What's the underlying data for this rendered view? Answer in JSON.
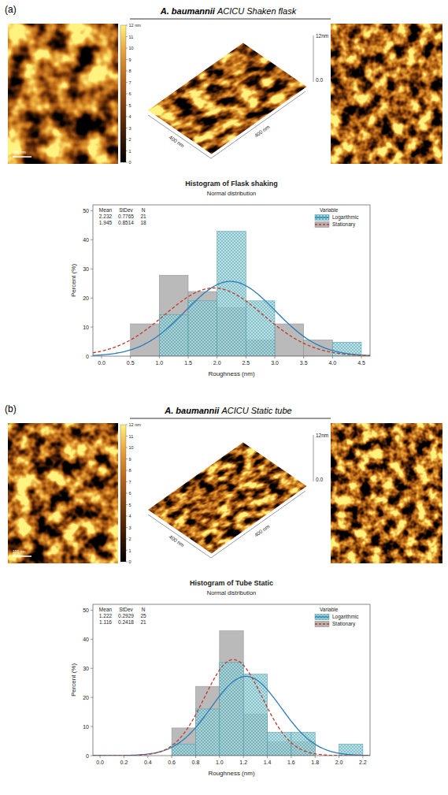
{
  "figure": {
    "panels": [
      {
        "label": "(a)",
        "title": "A. baumannii ACICU Shaken flask",
        "scale_bar": "100 nm",
        "colorbar": {
          "range": [
            0,
            12
          ],
          "ticks": [
            0,
            1,
            2,
            3,
            4,
            5,
            6,
            7,
            8,
            9,
            10,
            11
          ],
          "max_label": "12 nm"
        },
        "surface": {
          "x_label": "400 nm",
          "y_label": "400 nm",
          "z_top": "12nm",
          "z_bottom": "0.0"
        }
      },
      {
        "label": "(b)",
        "title": "A. baumannii ACICU Static tube",
        "scale_bar": "100 nm",
        "colorbar": {
          "range": [
            0,
            12
          ],
          "ticks": [
            0,
            1,
            2,
            3,
            4,
            5,
            6,
            7,
            8,
            9,
            10,
            11
          ],
          "max_label": "12 nm"
        },
        "surface": {
          "x_label": "400 nm",
          "y_label": "400 nm",
          "z_top": "12nm",
          "z_bottom": "0.0"
        }
      }
    ]
  },
  "chart_data": [
    {
      "type": "histogram",
      "title": "Histogram of Flask shaking",
      "subtitle": "Normal distribution",
      "x_label": "Roughness (nm)",
      "y_label": "Percent (%)",
      "bins": [
        0.5,
        1.0,
        1.5,
        2.0,
        2.5,
        3.0,
        3.5,
        4.0,
        4.5
      ],
      "series": [
        {
          "name": "Logarithmic",
          "color": "#2b7bba",
          "line_style": "solid",
          "values": [
            0,
            14.3,
            19.0,
            42.9,
            19.0,
            0,
            0,
            4.8
          ],
          "mean": 2.232,
          "stdev": 0.7765,
          "n": 21
        },
        {
          "name": "Stationary",
          "color": "#c0392b",
          "line_style": "dashed",
          "values": [
            11.1,
            27.8,
            22.2,
            16.7,
            5.6,
            11.1,
            5.6,
            0
          ],
          "mean": 1.945,
          "stdev": 0.8514,
          "n": 18
        }
      ],
      "stats_header": [
        "Mean",
        "StDev",
        "N"
      ],
      "legend": "top-right",
      "legend_title": "Variable",
      "xlim": [
        -0.15,
        4.65
      ],
      "ylim": [
        0,
        52
      ],
      "xticks": [
        {
          "value": 0,
          "label": "0.0"
        },
        0.5,
        {
          "value": 1,
          "label": "1.0"
        },
        1.5,
        {
          "value": 2,
          "label": "2.0"
        },
        2.5,
        {
          "value": 3,
          "label": "3.0"
        },
        3.5,
        {
          "value": 4,
          "label": "4.0"
        },
        4.5
      ],
      "yticks": [
        0,
        10,
        20,
        30,
        40,
        50
      ]
    },
    {
      "type": "histogram",
      "title": "Histogram of Tube Static",
      "subtitle": "Normal distribution",
      "x_label": "Roughness (nm)",
      "y_label": "Percent (%)",
      "bins": [
        0.6,
        0.8,
        1.0,
        1.2,
        1.4,
        1.6,
        1.8,
        2.0,
        2.2
      ],
      "series": [
        {
          "name": "Logarithmic",
          "color": "#2b7bba",
          "line_style": "solid",
          "values": [
            4,
            16,
            32,
            28,
            8,
            8,
            0,
            4
          ],
          "mean": 1.222,
          "stdev": 0.2929,
          "n": 25
        },
        {
          "name": "Stationary",
          "color": "#c0392b",
          "line_style": "dashed",
          "values": [
            9.5,
            23.8,
            42.9,
            14.3,
            4.8,
            4.8,
            0,
            0
          ],
          "mean": 1.116,
          "stdev": 0.2418,
          "n": 21
        }
      ],
      "stats_header": [
        "Mean",
        "StDev",
        "N"
      ],
      "legend": "top-right",
      "legend_title": "Variable",
      "xlim": [
        -0.06,
        2.26
      ],
      "ylim": [
        0,
        52
      ],
      "xticks": [
        {
          "value": 0,
          "label": "0.0"
        },
        0.2,
        0.4,
        0.6,
        0.8,
        {
          "value": 1,
          "label": "1.0"
        },
        1.2,
        1.4,
        1.6,
        1.8,
        {
          "value": 2,
          "label": "2.0"
        },
        2.2
      ],
      "yticks": [
        0,
        10,
        20,
        30,
        40,
        50
      ]
    }
  ]
}
